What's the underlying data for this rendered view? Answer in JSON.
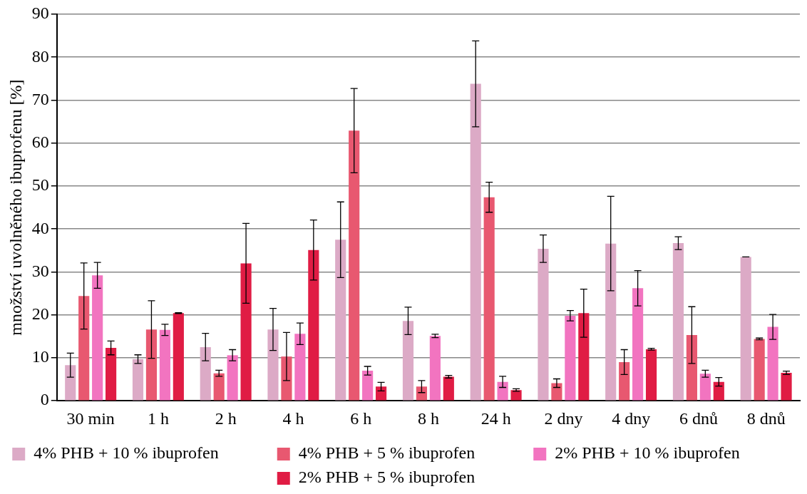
{
  "chart_data": {
    "type": "bar",
    "ylabel": "množství uvolněného ibuprofenu [%]",
    "categories": [
      "30 min",
      "1 h",
      "2 h",
      "4 h",
      "6 h",
      "8 h",
      "24 h",
      "2 dny",
      "4 dny",
      "6 dnů",
      "8 dnů"
    ],
    "series": [
      {
        "name": "4% PHB + 10 % ibuprofen",
        "color": "#dcaac6",
        "values": [
          8.3,
          9.7,
          12.5,
          16.6,
          37.5,
          18.6,
          73.8,
          35.4,
          36.6,
          36.7,
          33.5
        ],
        "errors": [
          2.8,
          1,
          3.2,
          4.9,
          8.8,
          3.2,
          10,
          3.2,
          11,
          1.5,
          0
        ]
      },
      {
        "name": "4% PHB + 5 % ibuprofen",
        "color": "#e85870",
        "values": [
          24.4,
          16.6,
          6.4,
          10.3,
          62.9,
          3.3,
          47.4,
          4.1,
          9,
          15.3,
          14.4
        ],
        "errors": [
          7.7,
          6.7,
          0.7,
          5.6,
          9.8,
          1.4,
          3.5,
          1,
          2.9,
          6.6,
          0.2
        ]
      },
      {
        "name": "2% PHB + 10 % ibuprofen",
        "color": "#f274c0",
        "values": [
          29.2,
          16.5,
          10.6,
          15.6,
          7,
          15.1,
          4.4,
          19.8,
          26.2,
          6.3,
          17.2
        ],
        "errors": [
          3,
          1.3,
          1.3,
          2.5,
          1,
          0.4,
          1.3,
          1.2,
          4.1,
          0.8,
          2.9
        ]
      },
      {
        "name": "2% PHB + 5 % ibuprofen",
        "color": "#e01c44",
        "values": [
          12.3,
          20.4,
          32,
          35.1,
          3.3,
          5.6,
          2.5,
          20.4,
          12,
          4.4,
          6.5
        ],
        "errors": [
          1.6,
          0.1,
          9.3,
          7,
          1,
          0.3,
          0.3,
          5.6,
          0.2,
          1,
          0.4
        ]
      }
    ],
    "ylim": [
      0,
      90
    ],
    "yticks": [
      0,
      10,
      20,
      30,
      40,
      50,
      60,
      70,
      80,
      90
    ],
    "grid": "y",
    "legend": "bottom"
  }
}
